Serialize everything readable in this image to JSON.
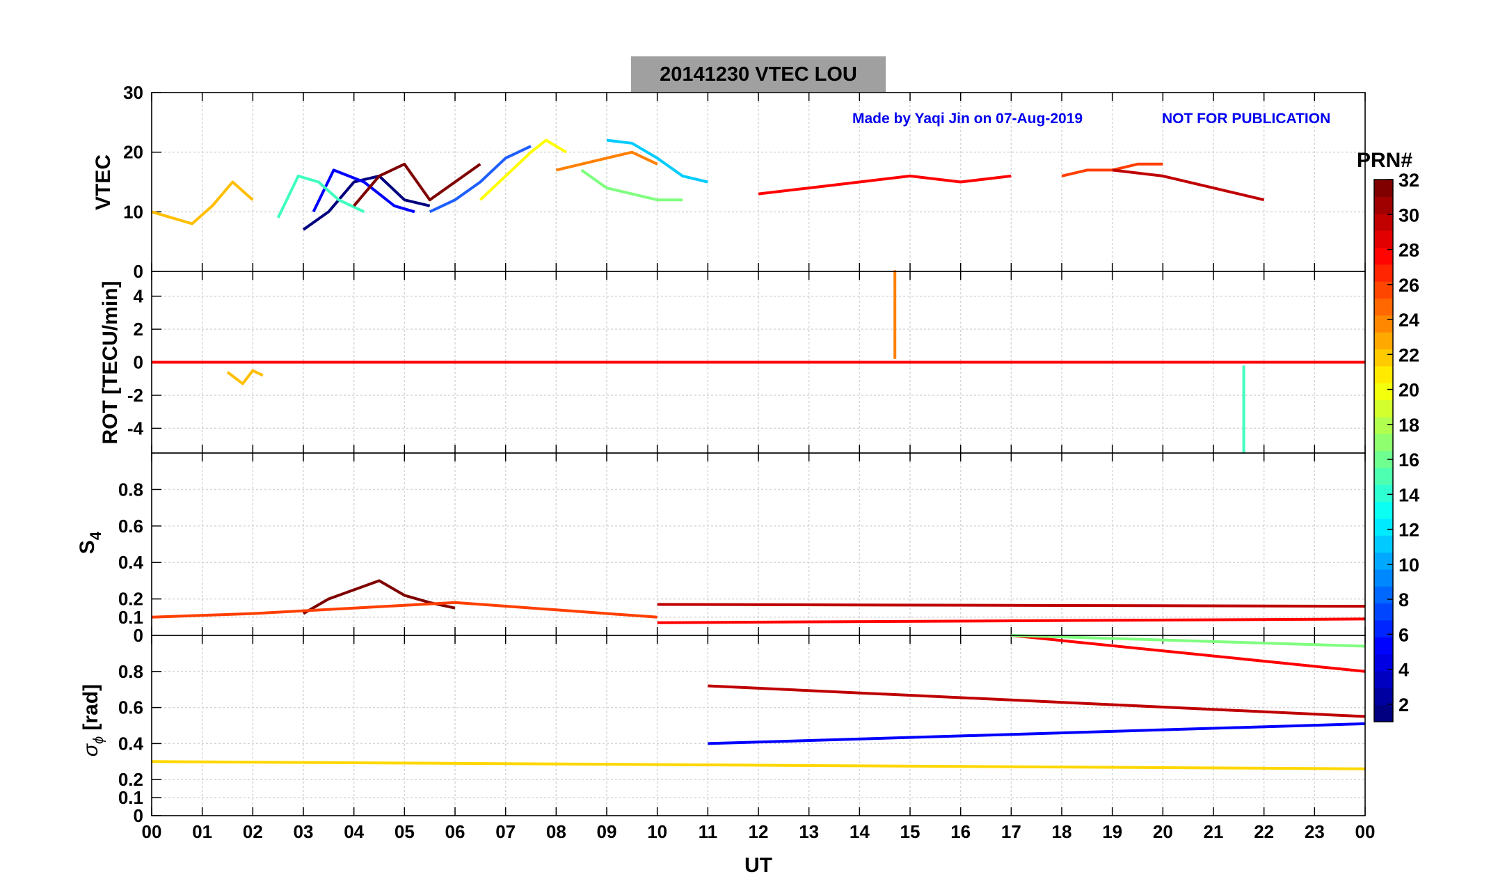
{
  "title": "20141230    VTEC  LOU",
  "credit": "Made by Yaqi Jin on 07-Aug-2019",
  "notice": "NOT FOR PUBLICATION",
  "x_axis": {
    "label": "UT",
    "ticks": [
      "00",
      "01",
      "02",
      "03",
      "04",
      "05",
      "06",
      "07",
      "08",
      "09",
      "10",
      "11",
      "12",
      "13",
      "14",
      "15",
      "16",
      "17",
      "18",
      "19",
      "20",
      "21",
      "22",
      "23",
      "00"
    ]
  },
  "colorbar": {
    "label": "PRN#",
    "ticks": [
      "2",
      "4",
      "6",
      "8",
      "10",
      "12",
      "14",
      "16",
      "18",
      "20",
      "22",
      "24",
      "26",
      "28",
      "30",
      "32"
    ]
  },
  "chart_data": [
    {
      "type": "line",
      "panel": "vtec",
      "ylabel": "VTEC",
      "xlim": [
        0,
        24
      ],
      "ylim": [
        0,
        30
      ],
      "yticks": [
        "0",
        "10",
        "20",
        "30"
      ],
      "series": [
        {
          "name": "PRN 2",
          "color": "#00007f",
          "x": [
            3.0,
            3.5,
            4.0,
            4.5,
            5.0,
            5.5
          ],
          "y": [
            7,
            10,
            15,
            16,
            12,
            11
          ]
        },
        {
          "name": "PRN 4",
          "color": "#0000ff",
          "x": [
            3.2,
            3.6,
            4.2,
            4.8,
            5.2
          ],
          "y": [
            10,
            17,
            15,
            11,
            10
          ]
        },
        {
          "name": "PRN 6",
          "color": "#1f5fff",
          "x": [
            5.5,
            6.0,
            6.5,
            7.0,
            7.5
          ],
          "y": [
            10,
            12,
            15,
            19,
            21
          ]
        },
        {
          "name": "PRN 12",
          "color": "#00ccff",
          "x": [
            9.0,
            9.5,
            10.0,
            10.5,
            11.0
          ],
          "y": [
            22,
            21.5,
            19,
            16,
            15
          ]
        },
        {
          "name": "PRN 14",
          "color": "#3fffbf",
          "x": [
            2.5,
            2.9,
            3.3,
            3.7,
            4.2
          ],
          "y": [
            9,
            16,
            15,
            12,
            10
          ]
        },
        {
          "name": "PRN 16",
          "color": "#7fff7f",
          "x": [
            8.5,
            9.0,
            9.5,
            10.0,
            10.5
          ],
          "y": [
            17,
            14,
            13,
            12,
            12
          ]
        },
        {
          "name": "PRN 20",
          "color": "#ffff00",
          "x": [
            6.5,
            7.0,
            7.5,
            7.8,
            8.2
          ],
          "y": [
            12,
            16,
            20,
            22,
            20
          ]
        },
        {
          "name": "PRN 22",
          "color": "#ffbf00",
          "x": [
            0.0,
            0.4,
            0.8,
            1.2,
            1.6,
            2.0
          ],
          "y": [
            10,
            9,
            8,
            11,
            15,
            12
          ]
        },
        {
          "name": "PRN 24",
          "color": "#ff8000",
          "x": [
            8.0,
            8.5,
            9.0,
            9.5,
            10.0
          ],
          "y": [
            17,
            18,
            19,
            20,
            18
          ]
        },
        {
          "name": "PRN 26",
          "color": "#ff3f00",
          "x": [
            18.0,
            18.5,
            19.0,
            19.5,
            20.0
          ],
          "y": [
            16,
            17,
            17,
            18,
            18
          ]
        },
        {
          "name": "PRN 28",
          "color": "#ff0000",
          "x": [
            12.0,
            13.0,
            14.0,
            15.0,
            16.0,
            17.0
          ],
          "y": [
            13,
            14,
            15,
            16,
            15,
            16
          ]
        },
        {
          "name": "PRN 30",
          "color": "#bf0000",
          "x": [
            19.0,
            20.0,
            21.0,
            22.0
          ],
          "y": [
            17,
            16,
            14,
            12
          ]
        },
        {
          "name": "PRN 32",
          "color": "#7f0000",
          "x": [
            4.0,
            4.5,
            5.0,
            5.5,
            6.0,
            6.5
          ],
          "y": [
            11,
            16,
            18,
            12,
            15,
            18
          ]
        }
      ]
    },
    {
      "type": "line",
      "panel": "rot",
      "ylabel": "ROT [TECU/min]",
      "xlim": [
        0,
        24
      ],
      "ylim": [
        -5.5,
        5.5
      ],
      "yticks": [
        "-4",
        "-2",
        "0",
        "2",
        "4"
      ],
      "series": [
        {
          "name": "PRN 24 spike",
          "color": "#ff8000",
          "x": [
            14.7,
            14.7,
            14.7
          ],
          "y": [
            0.2,
            5.5,
            0.2
          ]
        },
        {
          "name": "PRN 13 spike",
          "color": "#3fffbf",
          "x": [
            21.6,
            21.6,
            21.6
          ],
          "y": [
            -0.2,
            -5.5,
            -0.2
          ]
        },
        {
          "name": "PRN 28 baseline",
          "color": "#ff0000",
          "x": [
            0,
            6,
            12,
            18,
            24
          ],
          "y": [
            0,
            0,
            0,
            0,
            0
          ]
        },
        {
          "name": "PRN 22 early",
          "color": "#ffbf00",
          "x": [
            1.5,
            1.8,
            2.0,
            2.2
          ],
          "y": [
            -0.6,
            -1.3,
            -0.5,
            -0.8
          ]
        }
      ]
    },
    {
      "type": "line",
      "panel": "s4",
      "ylabel": "S4",
      "xlim": [
        0,
        24
      ],
      "ylim": [
        0,
        1
      ],
      "yticks": [
        "0",
        "0.1",
        "0.2",
        "0.4",
        "0.6",
        "0.8"
      ],
      "series": [
        {
          "name": "PRN 32",
          "color": "#7f0000",
          "x": [
            3,
            3.5,
            4,
            4.5,
            5,
            5.5,
            6
          ],
          "y": [
            0.12,
            0.2,
            0.25,
            0.3,
            0.22,
            0.18,
            0.15
          ]
        },
        {
          "name": "PRN 30 line",
          "color": "#bf0000",
          "x": [
            10.0,
            24.0
          ],
          "y": [
            0.17,
            0.16
          ]
        },
        {
          "name": "PRN 28 line",
          "color": "#ff0000",
          "x": [
            10.0,
            24.0
          ],
          "y": [
            0.07,
            0.09
          ]
        },
        {
          "name": "PRN 26",
          "color": "#ff3f00",
          "x": [
            0,
            2,
            4,
            6,
            8,
            10
          ],
          "y": [
            0.1,
            0.12,
            0.15,
            0.18,
            0.14,
            0.1
          ]
        }
      ]
    },
    {
      "type": "line",
      "panel": "sigma_phi",
      "ylabel": "σ_φ [rad]",
      "xlim": [
        0,
        24
      ],
      "ylim": [
        0,
        1
      ],
      "yticks": [
        "0",
        "0.1",
        "0.2",
        "0.4",
        "0.6",
        "0.8"
      ],
      "series": [
        {
          "name": "PRN 22 line",
          "color": "#ffd700",
          "x": [
            0.0,
            24.0
          ],
          "y": [
            0.3,
            0.26
          ]
        },
        {
          "name": "PRN 4 line",
          "color": "#0000ff",
          "x": [
            11.0,
            24.0
          ],
          "y": [
            0.4,
            0.51
          ]
        },
        {
          "name": "PRN 30 line",
          "color": "#bf0000",
          "x": [
            11.0,
            24.0
          ],
          "y": [
            0.72,
            0.55
          ]
        },
        {
          "name": "PRN 28 line",
          "color": "#ff0000",
          "x": [
            17.0,
            24.0
          ],
          "y": [
            1.0,
            0.8
          ]
        },
        {
          "name": "PRN 16 line",
          "color": "#7fff7f",
          "x": [
            17.0,
            24.0
          ],
          "y": [
            1.0,
            0.94
          ]
        }
      ]
    }
  ]
}
